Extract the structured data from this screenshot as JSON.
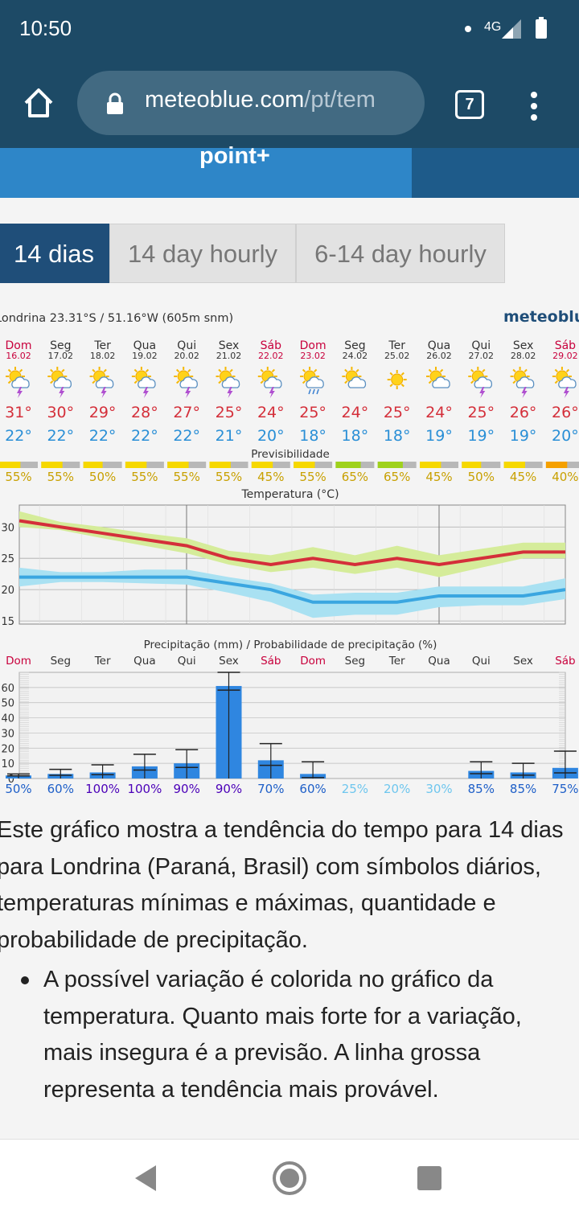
{
  "status_bar": {
    "time": "10:50",
    "network": "4G"
  },
  "browser": {
    "url_domain": "meteoblue.com",
    "url_path": "/pt/tem",
    "tab_count": "7"
  },
  "banner": {
    "text": "point+"
  },
  "tabs": [
    {
      "label": "14 dias",
      "active": true
    },
    {
      "label": "14 day hourly",
      "active": false
    },
    {
      "label": "6-14 day hourly",
      "active": false
    }
  ],
  "meteogram": {
    "location": "Londrina  23.31°S / 51.16°W (605m snm)",
    "brand": "meteoblu",
    "days": [
      {
        "name": "Dom",
        "date": "16.02",
        "max": "31°",
        "min": "22°",
        "pred": "55%",
        "pred_level": 0.55,
        "icon": "sun-cloud-thunder-icon",
        "precip": 2,
        "precip_hi": 3,
        "prob": "50%",
        "weekend": true
      },
      {
        "name": "Seg",
        "date": "17.02",
        "max": "30°",
        "min": "22°",
        "pred": "55%",
        "pred_level": 0.55,
        "icon": "sun-cloud-thunder-icon",
        "precip": 3,
        "precip_hi": 6,
        "prob": "60%",
        "weekend": false
      },
      {
        "name": "Ter",
        "date": "18.02",
        "max": "29°",
        "min": "22°",
        "pred": "50%",
        "pred_level": 0.5,
        "icon": "sun-cloud-thunder-icon",
        "precip": 4,
        "precip_hi": 9,
        "prob": "100%",
        "weekend": false
      },
      {
        "name": "Qua",
        "date": "19.02",
        "max": "28°",
        "min": "22°",
        "pred": "55%",
        "pred_level": 0.55,
        "icon": "sun-cloud-thunder-icon",
        "precip": 8,
        "precip_hi": 16,
        "prob": "100%",
        "weekend": false
      },
      {
        "name": "Qui",
        "date": "20.02",
        "max": "27°",
        "min": "22°",
        "pred": "55%",
        "pred_level": 0.55,
        "icon": "sun-cloud-thunder-icon",
        "precip": 10,
        "precip_hi": 19,
        "prob": "90%",
        "weekend": false
      },
      {
        "name": "Sex",
        "date": "21.02",
        "max": "25°",
        "min": "21°",
        "pred": "55%",
        "pred_level": 0.55,
        "icon": "sun-cloud-thunder-icon",
        "precip": 61,
        "precip_hi": 70,
        "prob": "90%",
        "weekend": false
      },
      {
        "name": "Sáb",
        "date": "22.02",
        "max": "24°",
        "min": "20°",
        "pred": "45%",
        "pred_level": 0.45,
        "icon": "sun-cloud-thunder-icon",
        "precip": 12,
        "precip_hi": 23,
        "prob": "70%",
        "weekend": true
      },
      {
        "name": "Dom",
        "date": "23.02",
        "max": "25°",
        "min": "18°",
        "pred": "55%",
        "pred_level": 0.55,
        "icon": "sun-cloud-rain-icon",
        "precip": 3,
        "precip_hi": 11,
        "prob": "60%",
        "weekend": true
      },
      {
        "name": "Seg",
        "date": "24.02",
        "max": "24°",
        "min": "18°",
        "pred": "65%",
        "pred_level": 0.65,
        "icon": "sun-cloud-icon",
        "precip": 0,
        "precip_hi": 0,
        "prob": "25%",
        "weekend": false
      },
      {
        "name": "Ter",
        "date": "25.02",
        "max": "25°",
        "min": "18°",
        "pred": "65%",
        "pred_level": 0.65,
        "icon": "sun-icon",
        "precip": 0,
        "precip_hi": 0,
        "prob": "20%",
        "weekend": false
      },
      {
        "name": "Qua",
        "date": "26.02",
        "max": "24°",
        "min": "19°",
        "pred": "45%",
        "pred_level": 0.45,
        "icon": "sun-cloud-icon",
        "precip": 0,
        "precip_hi": 0,
        "prob": "30%",
        "weekend": false
      },
      {
        "name": "Qui",
        "date": "27.02",
        "max": "25°",
        "min": "19°",
        "pred": "50%",
        "pred_level": 0.5,
        "icon": "sun-cloud-thunder-icon",
        "precip": 5,
        "precip_hi": 11,
        "prob": "85%",
        "weekend": false
      },
      {
        "name": "Sex",
        "date": "28.02",
        "max": "26°",
        "min": "19°",
        "pred": "45%",
        "pred_level": 0.45,
        "icon": "sun-cloud-thunder-icon",
        "precip": 4,
        "precip_hi": 10,
        "prob": "85%",
        "weekend": false
      },
      {
        "name": "Sáb",
        "date": "29.02",
        "max": "26°",
        "min": "20°",
        "pred": "40%",
        "pred_level": 0.4,
        "icon": "sun-cloud-thunder-icon",
        "precip": 7,
        "precip_hi": 18,
        "prob": "75%",
        "weekend": true
      }
    ],
    "pred_title": "Previsibilidade",
    "temp_title": "Temperatura (°C)",
    "precip_title": "Precipitação (mm) / Probabilidade de precipitação (%)",
    "temp_ticks": [
      "30",
      "25",
      "20",
      "15"
    ],
    "precip_ticks": [
      "60",
      "50",
      "40",
      "30",
      "20",
      "10",
      "0"
    ],
    "colors": {
      "max_line": "#d42f3a",
      "min_line": "#3aa6e0",
      "max_band": "#d5ec9a",
      "min_band": "#a9e1f2",
      "bar": "#2f86e0",
      "weekend": "#c8003c"
    }
  },
  "chart_data": [
    {
      "type": "line",
      "title": "Temperatura (°C)",
      "categories": [
        "16.02",
        "17.02",
        "18.02",
        "19.02",
        "20.02",
        "21.02",
        "22.02",
        "23.02",
        "24.02",
        "25.02",
        "26.02",
        "27.02",
        "28.02",
        "29.02"
      ],
      "series": [
        {
          "name": "max",
          "values": [
            31,
            30,
            29,
            28,
            27,
            25,
            24,
            25,
            24,
            25,
            24,
            25,
            26,
            26
          ]
        },
        {
          "name": "min",
          "values": [
            22,
            22,
            22,
            22,
            22,
            21,
            20,
            18,
            18,
            18,
            19,
            19,
            19,
            20
          ]
        }
      ],
      "ylim": [
        15,
        33
      ]
    },
    {
      "type": "bar",
      "title": "Precipitação (mm) / Probabilidade de precipitação (%)",
      "categories": [
        "16.02",
        "17.02",
        "18.02",
        "19.02",
        "20.02",
        "21.02",
        "22.02",
        "23.02",
        "24.02",
        "25.02",
        "26.02",
        "27.02",
        "28.02",
        "29.02"
      ],
      "values": [
        2,
        3,
        4,
        8,
        10,
        61,
        12,
        3,
        0,
        0,
        0,
        5,
        4,
        7
      ],
      "ylim": [
        0,
        70
      ]
    }
  ],
  "article": {
    "paragraph": "Este gráfico mostra a tendência do tempo para 14 dias para Londrina (Paraná, Brasil) com símbolos diários, temperaturas mínimas e máximas, quantidade e probabilidade de precipitação.",
    "bullet": "A possível variação é colorida no gráfico da temperatura. Quanto mais forte for a variação, mais insegura é a previsão. A linha grossa representa a tendência mais provável."
  }
}
